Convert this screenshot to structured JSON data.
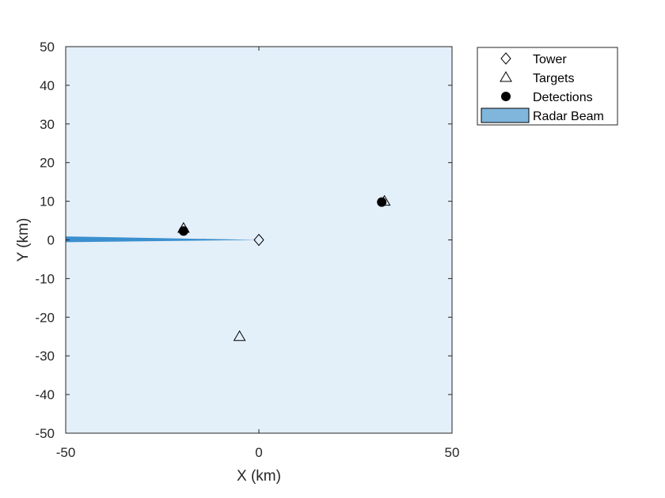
{
  "chart_data": {
    "type": "scatter",
    "title": "",
    "xlabel": "X (km)",
    "ylabel": "Y (km)",
    "xlim": [
      -50,
      50
    ],
    "ylim": [
      -50,
      50
    ],
    "xticks": [
      -50,
      0,
      50
    ],
    "yticks": [
      50,
      40,
      30,
      20,
      10,
      0,
      -10,
      -20,
      -30,
      -40,
      -50
    ],
    "grid": false,
    "legend_position": "outside-top-right",
    "colors": {
      "background": "#e3eff9",
      "beam": "#3a8fcf",
      "beam_legend": "#80b5dc",
      "marker": "#000000"
    },
    "series": [
      {
        "name": "Tower",
        "marker": "diamond",
        "points": [
          [
            0,
            0
          ]
        ]
      },
      {
        "name": "Targets",
        "marker": "triangle",
        "points": [
          [
            -19.5,
            3
          ],
          [
            32.5,
            10
          ],
          [
            -5,
            -25
          ]
        ]
      },
      {
        "name": "Detections",
        "marker": "filled-circle",
        "points": [
          [
            -19.5,
            2.3
          ],
          [
            31.8,
            9.8
          ]
        ]
      },
      {
        "name": "Radar Beam",
        "marker": "patch",
        "polygon": [
          [
            0,
            0
          ],
          [
            -50,
            0.9
          ],
          [
            -50,
            -0.6
          ]
        ]
      }
    ]
  }
}
